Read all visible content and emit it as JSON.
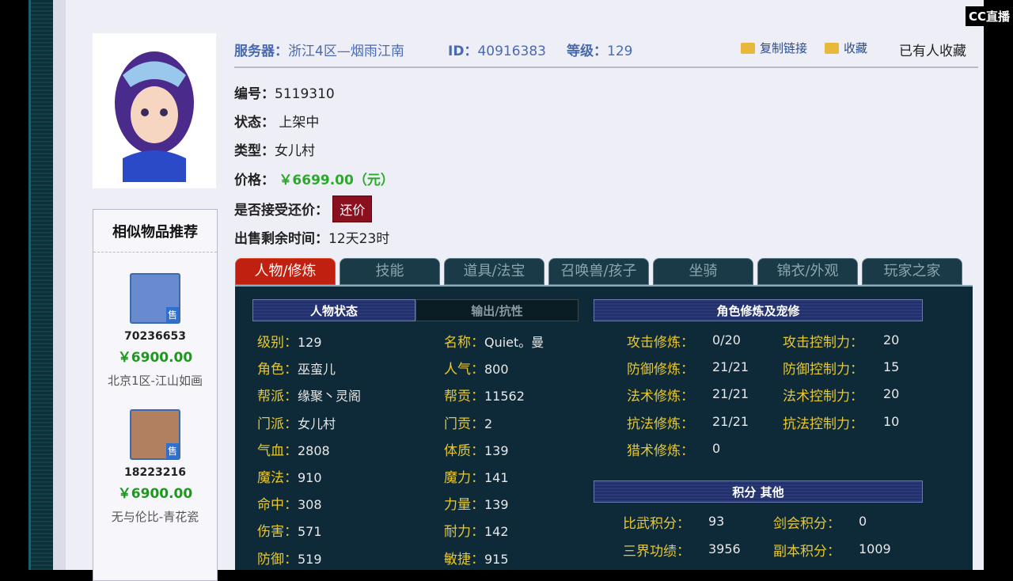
{
  "header": {
    "server_label": "服务器：",
    "server": "浙江4区—烟雨江南",
    "id_label": "ID：",
    "id": "40916383",
    "level_label": "等级：",
    "level": "129",
    "copy_link": "复制链接",
    "favorite": "收藏",
    "favorited": "已有人收藏"
  },
  "info": {
    "number_label": "编号：",
    "number": "5119310",
    "status_label": "状态：",
    "status": "上架中",
    "type_label": "类型：",
    "type": "女儿村",
    "price_label": "价格：",
    "price": "￥6699.00（元）",
    "bargain_label": "是否接受还价：",
    "bargain_button": "还价",
    "remaining_label": "出售剩余时间：",
    "remaining": "12天23时"
  },
  "similar": {
    "title": "相似物品推荐",
    "items": [
      {
        "id": "70236653",
        "price": "￥6900.00",
        "name": "北京1区-江山如画",
        "badge": "售"
      },
      {
        "id": "18223216",
        "price": "￥6900.00",
        "name": "无与伦比-青花瓷",
        "badge": "售"
      }
    ]
  },
  "tabs": [
    "人物/修炼",
    "技能",
    "道具/法宝",
    "召唤兽/孩子",
    "坐骑",
    "锦衣/外观",
    "玩家之家"
  ],
  "panel": {
    "status_tab": "人物状态",
    "output_tab": "输出/抗性",
    "cult_title": "角色修炼及宠修",
    "score_title": "积分 其他",
    "left": [
      [
        "级别：",
        "129"
      ],
      [
        "角色：",
        "巫蛮儿"
      ],
      [
        "帮派：",
        "缘聚丶灵阁"
      ],
      [
        "门派：",
        "女儿村"
      ],
      [
        "气血：",
        "2808"
      ],
      [
        "魔法：",
        "910"
      ],
      [
        "命中：",
        "308"
      ],
      [
        "伤害：",
        "571"
      ],
      [
        "防御：",
        "519"
      ]
    ],
    "mid": [
      [
        "名称：",
        "Quiet。曼"
      ],
      [
        "人气：",
        "800"
      ],
      [
        "帮贡：",
        "11562"
      ],
      [
        "门贡：",
        "2"
      ],
      [
        "体质：",
        "139"
      ],
      [
        "魔力：",
        "141"
      ],
      [
        "力量：",
        "139"
      ],
      [
        "耐力：",
        "142"
      ],
      [
        "敏捷：",
        "915"
      ]
    ],
    "cult": [
      [
        "攻击修炼：",
        "0/20"
      ],
      [
        "防御修炼：",
        "21/21"
      ],
      [
        "法术修炼：",
        "21/21"
      ],
      [
        "抗法修炼：",
        "21/21"
      ],
      [
        "猎术修炼：",
        "0"
      ]
    ],
    "ctrl": [
      [
        "攻击控制力：",
        "20"
      ],
      [
        "防御控制力：",
        "15"
      ],
      [
        "法术控制力：",
        "20"
      ],
      [
        "抗法控制力：",
        "10"
      ]
    ],
    "scores": [
      [
        "比武积分：",
        "93"
      ],
      [
        "剑会积分：",
        "0"
      ],
      [
        "三界功绩：",
        "3956"
      ],
      [
        "副本积分：",
        "1009"
      ]
    ]
  },
  "watermark": "CC直播"
}
